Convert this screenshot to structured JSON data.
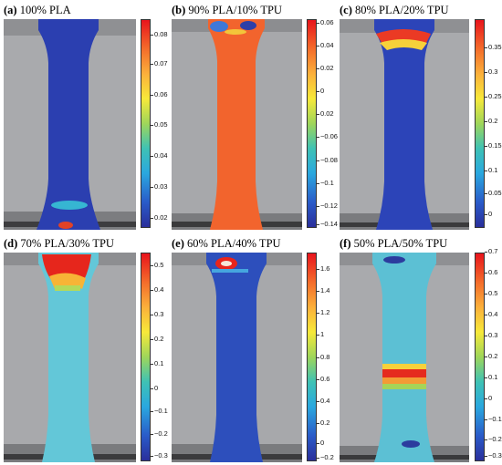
{
  "panels": [
    {
      "label": "(a)",
      "title": "100% PLA",
      "ticks": [
        "0.08",
        "0.07",
        "0.06",
        "0.05",
        "0.04",
        "0.03",
        "0.02"
      ]
    },
    {
      "label": "(b)",
      "title": "90% PLA/10% TPU",
      "ticks": [
        "0.06",
        "0.04",
        "0.02",
        "0",
        "0.02",
        "−0.06",
        "−0.08",
        "−0.1",
        "−0.12",
        "−0.14"
      ]
    },
    {
      "label": "(c)",
      "title": "80% PLA/20% TPU",
      "ticks": [
        "0.35",
        "0.3",
        "0.25",
        "0.2",
        "0.15",
        "0.1",
        "0.05",
        "0"
      ]
    },
    {
      "label": "(d)",
      "title": "70% PLA/30% TPU",
      "ticks": [
        "0.5",
        "0.4",
        "0.3",
        "0.2",
        "0.1",
        "0",
        "−0.1",
        "−0.2",
        "−0.3"
      ]
    },
    {
      "label": "(e)",
      "title": "60% PLA/40% TPU",
      "ticks": [
        "1.6",
        "1.4",
        "1.2",
        "1",
        "0.8",
        "0.6",
        "0.4",
        "0.2",
        "0",
        "−0.2"
      ]
    },
    {
      "label": "(f)",
      "title": "50% PLA/50% TPU",
      "ticks": [
        "0.7",
        "0.6",
        "0.5",
        "0.4",
        "0.3",
        "0.2",
        "0.1",
        "0",
        "−0.1",
        "−0.2",
        "−0.3"
      ]
    }
  ],
  "colors": {
    "low": "#2a2f9b",
    "high": "#e8141c",
    "background_gray": "#a9aaad"
  }
}
